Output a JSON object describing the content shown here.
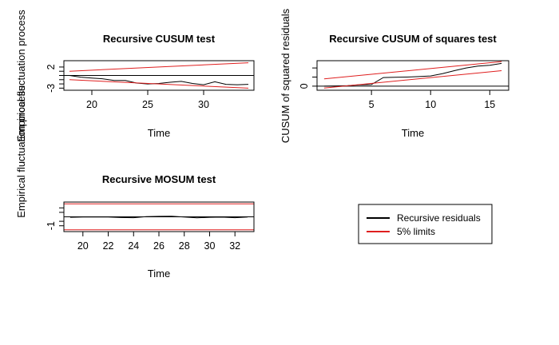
{
  "colors": {
    "series": "#000000",
    "limits": "#df1f1f",
    "boundary": "#df1f1f"
  },
  "legend": {
    "items": [
      {
        "label": "Recursive residuals",
        "color": "#000000"
      },
      {
        "label": "5% limits",
        "color": "#df1f1f"
      }
    ]
  },
  "chart_data": [
    {
      "type": "line",
      "title": "Recursive CUSUM test",
      "xlabel": "Time",
      "ylabel": "Empirical fluctuation process",
      "xlim": [
        17.5,
        34.5
      ],
      "ylim": [
        -3.5,
        3.5
      ],
      "xticks": [
        20,
        25,
        30
      ],
      "yticks": [
        -3,
        2
      ],
      "ytick_minor": [
        -2,
        -1,
        0,
        1
      ],
      "hline": 0,
      "series": [
        {
          "role": "process",
          "x": [
            18,
            19,
            20,
            21,
            22,
            23,
            24,
            25,
            26,
            27,
            28,
            29,
            30,
            31,
            32,
            33,
            34
          ],
          "y": [
            0,
            -0.4,
            -0.6,
            -0.8,
            -1.2,
            -1.2,
            -1.8,
            -2.0,
            -1.9,
            -1.6,
            -1.4,
            -1.9,
            -2.2,
            -1.5,
            -2.1,
            -2.2,
            -2.1
          ]
        },
        {
          "role": "upper",
          "x": [
            18,
            34
          ],
          "y": [
            1.0,
            3.0
          ]
        },
        {
          "role": "lower",
          "x": [
            18,
            34
          ],
          "y": [
            -1.0,
            -3.0
          ]
        }
      ]
    },
    {
      "type": "line",
      "title": "Recursive CUSUM of squares test",
      "xlabel": "Time",
      "ylabel": "CUSUM of squared residuals",
      "xlim": [
        0.4,
        16.6
      ],
      "ylim": [
        -0.18,
        1.12
      ],
      "xticks": [
        5,
        10,
        15
      ],
      "yticks": [
        0.0
      ],
      "ytick_minor": [
        0.4,
        0.8
      ],
      "hline": 0,
      "series": [
        {
          "role": "process",
          "x": [
            1,
            2,
            3,
            4,
            5,
            6,
            7,
            8,
            9,
            10,
            11,
            12,
            13,
            14,
            15,
            16
          ],
          "y": [
            0.0,
            0.01,
            0.02,
            0.06,
            0.07,
            0.38,
            0.39,
            0.4,
            0.42,
            0.45,
            0.55,
            0.68,
            0.8,
            0.88,
            0.92,
            1.0
          ]
        },
        {
          "role": "upper",
          "x": [
            1,
            16
          ],
          "y": [
            0.32,
            1.08
          ]
        },
        {
          "role": "lower",
          "x": [
            1,
            16
          ],
          "y": [
            -0.08,
            0.68
          ]
        }
      ]
    },
    {
      "type": "line",
      "title": "Recursive MOSUM test",
      "xlabel": "Time",
      "ylabel": "Empirical fluctuation process",
      "xlim": [
        18.5,
        33.5
      ],
      "ylim": [
        -1.65,
        1.65
      ],
      "xticks": [
        20,
        22,
        24,
        26,
        28,
        30,
        32
      ],
      "yticks": [
        -1.0
      ],
      "ytick_minor": [
        -0.5,
        0.5,
        1.0
      ],
      "hline": 0,
      "series": [
        {
          "role": "process",
          "x": [
            19,
            20,
            21,
            22,
            23,
            24,
            25,
            26,
            27,
            28,
            29,
            30,
            31,
            32,
            33
          ],
          "y": [
            -0.05,
            -0.03,
            -0.02,
            -0.03,
            -0.08,
            -0.1,
            0.02,
            0.05,
            0.07,
            -0.02,
            -0.12,
            -0.05,
            -0.04,
            -0.1,
            -0.03
          ]
        },
        {
          "role": "upper",
          "x": [
            18.5,
            33.5
          ],
          "y": [
            1.45,
            1.45
          ]
        },
        {
          "role": "lower",
          "x": [
            18.5,
            33.5
          ],
          "y": [
            -1.45,
            -1.45
          ]
        }
      ]
    }
  ]
}
